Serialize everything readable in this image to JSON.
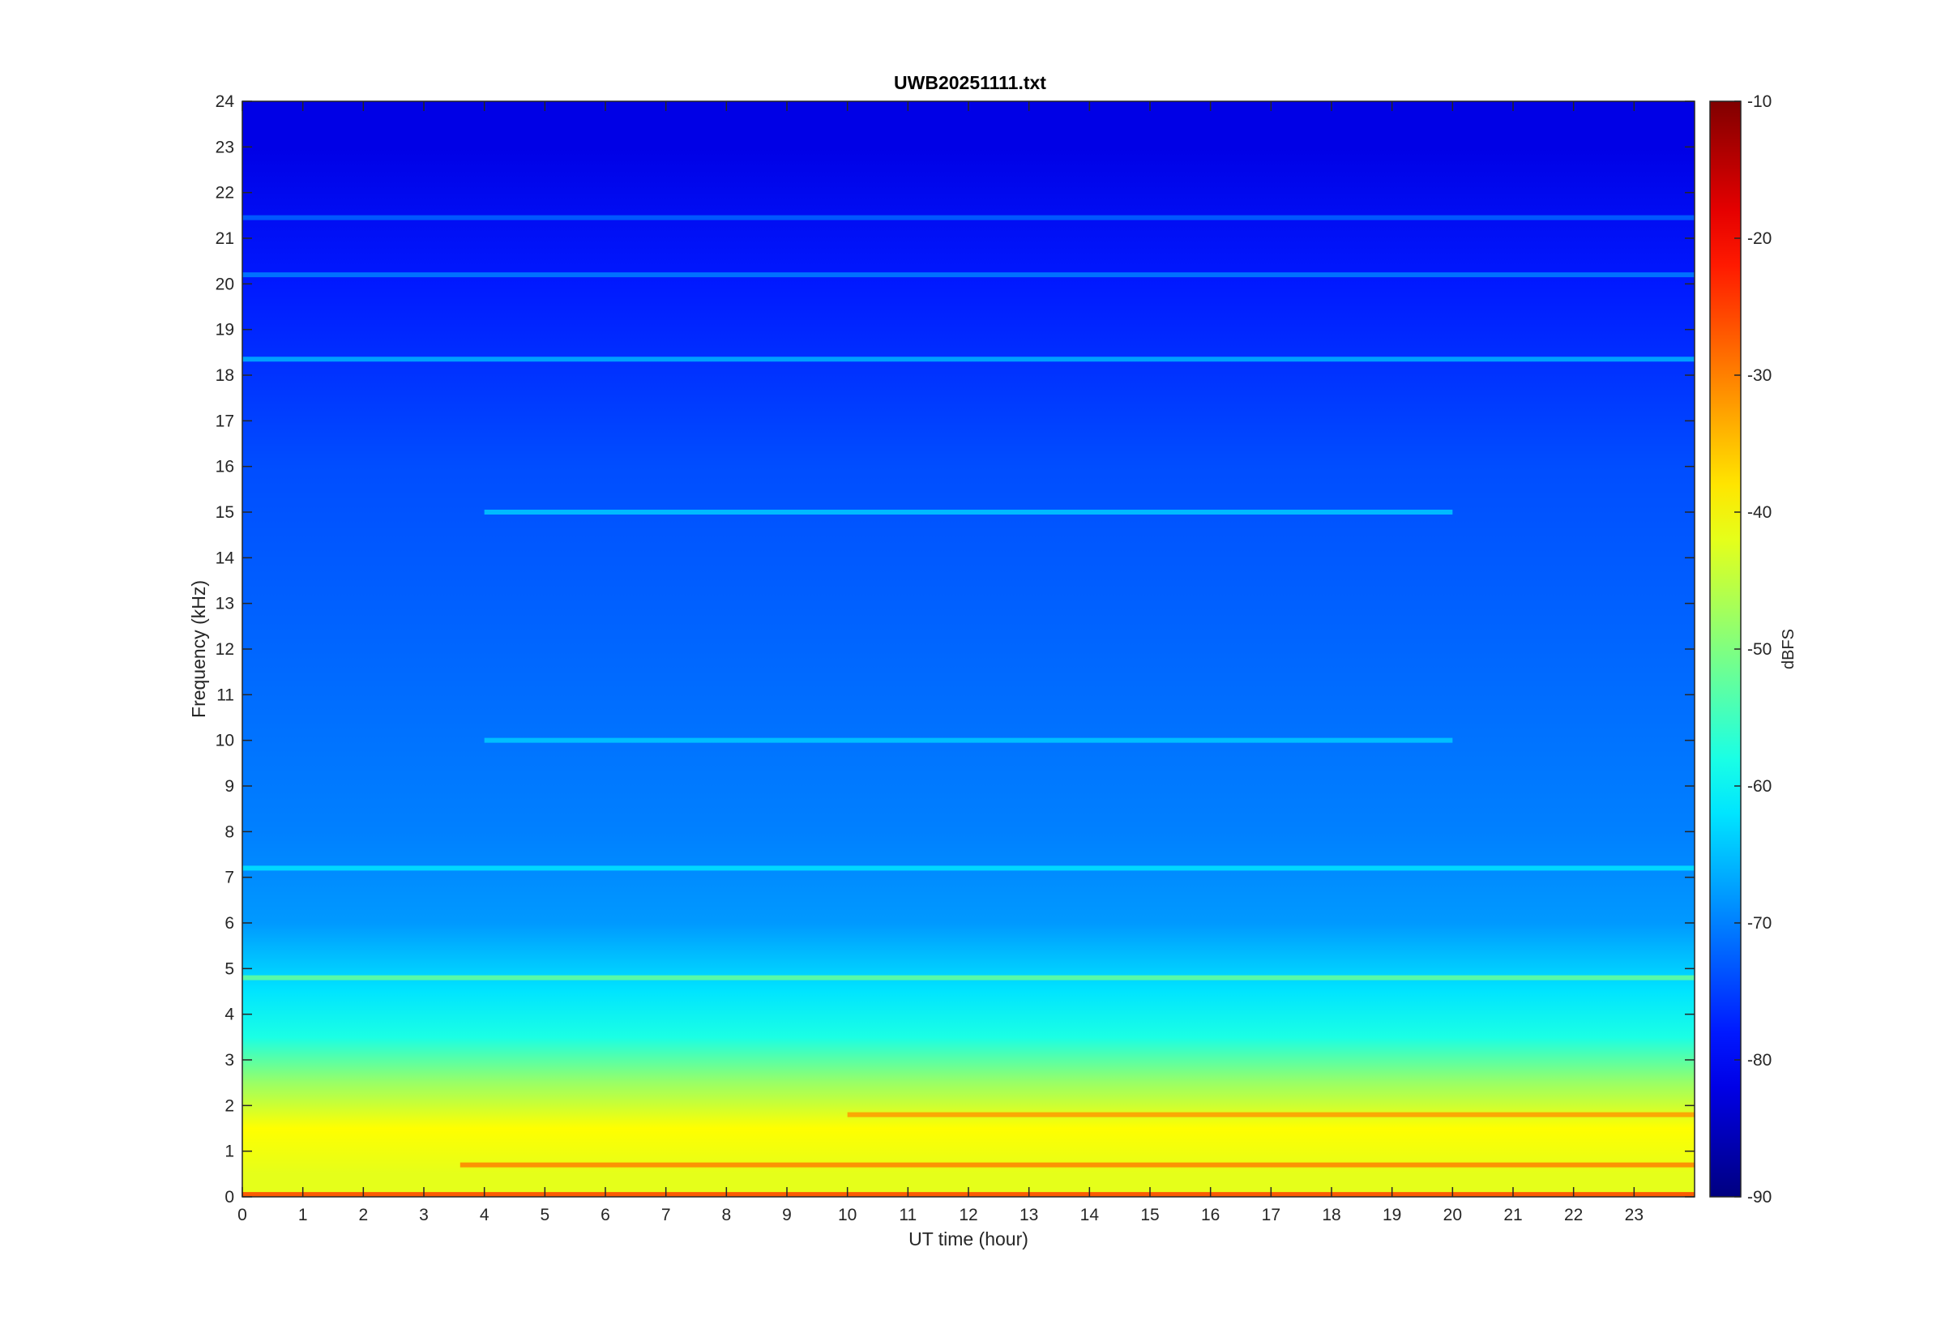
{
  "chart_data": {
    "type": "heatmap",
    "title": "UWB20251111.txt",
    "xlabel": "UT time (hour)",
    "ylabel": "Frequency (kHz)",
    "xlim": [
      0,
      24
    ],
    "ylim": [
      0,
      24
    ],
    "x_ticks": [
      "0",
      "1",
      "2",
      "3",
      "4",
      "5",
      "6",
      "7",
      "8",
      "9",
      "10",
      "11",
      "12",
      "13",
      "14",
      "15",
      "16",
      "17",
      "18",
      "19",
      "20",
      "21",
      "22",
      "23"
    ],
    "y_ticks": [
      "0",
      "1",
      "2",
      "3",
      "4",
      "5",
      "6",
      "7",
      "8",
      "9",
      "10",
      "11",
      "12",
      "13",
      "14",
      "15",
      "16",
      "17",
      "18",
      "19",
      "20",
      "21",
      "22",
      "23",
      "24"
    ],
    "colorbar": {
      "label": "dBFS",
      "range": [
        -90,
        -10
      ],
      "ticks": [
        "-10",
        "-20",
        "-30",
        "-40",
        "-50",
        "-60",
        "-70",
        "-80",
        "-90"
      ],
      "colormap": "jet"
    },
    "background_level_profile": [
      {
        "freq_khz": 0.5,
        "dbfs": -42
      },
      {
        "freq_khz": 1.5,
        "dbfs": -40
      },
      {
        "freq_khz": 2.5,
        "dbfs": -48
      },
      {
        "freq_khz": 3.5,
        "dbfs": -58
      },
      {
        "freq_khz": 4.5,
        "dbfs": -62
      },
      {
        "freq_khz": 6,
        "dbfs": -68
      },
      {
        "freq_khz": 8,
        "dbfs": -70
      },
      {
        "freq_khz": 12,
        "dbfs": -72
      },
      {
        "freq_khz": 16,
        "dbfs": -74
      },
      {
        "freq_khz": 20,
        "dbfs": -78
      },
      {
        "freq_khz": 23,
        "dbfs": -82
      }
    ],
    "persistent_lines": [
      {
        "freq_khz": 18.35,
        "dbfs": -66,
        "hours": [
          0,
          24
        ]
      },
      {
        "freq_khz": 20.2,
        "dbfs": -70,
        "hours": [
          0,
          24
        ]
      },
      {
        "freq_khz": 21.45,
        "dbfs": -72,
        "hours": [
          0,
          24
        ]
      },
      {
        "freq_khz": 15.0,
        "dbfs": -64,
        "hours": [
          4,
          20
        ]
      },
      {
        "freq_khz": 10.0,
        "dbfs": -64,
        "hours": [
          4,
          20
        ]
      },
      {
        "freq_khz": 4.8,
        "dbfs": -52,
        "hours": [
          0,
          24
        ]
      },
      {
        "freq_khz": 7.2,
        "dbfs": -62,
        "hours": [
          0,
          24
        ]
      },
      {
        "freq_khz": 1.8,
        "dbfs": -32,
        "hours": [
          10,
          24
        ]
      },
      {
        "freq_khz": 0.7,
        "dbfs": -30,
        "hours": [
          3.6,
          24
        ]
      },
      {
        "freq_khz": 0.05,
        "dbfs": -25,
        "hours": [
          0,
          24
        ]
      }
    ]
  },
  "colors": {
    "background": "#ffffff",
    "axis": "#262626"
  }
}
